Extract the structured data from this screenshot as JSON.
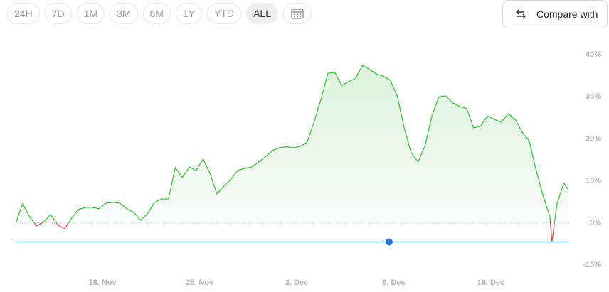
{
  "range_buttons": [
    "24H",
    "7D",
    "1M",
    "3M",
    "6M",
    "1Y",
    "YTD",
    "ALL"
  ],
  "selected_range": "ALL",
  "compare_button": "Compare with",
  "chart_data": {
    "type": "line",
    "x": [
      11.75,
      12.25,
      12.75,
      13.25,
      13.75,
      14.25,
      14.75,
      15.25,
      15.75,
      16.25,
      16.75,
      17.25,
      17.75,
      18.25,
      18.75,
      19.25,
      19.75,
      20.25,
      20.75,
      21.25,
      21.75,
      22.25,
      22.75,
      23.25,
      23.75,
      24.25,
      24.75,
      25.25,
      25.75,
      26.25,
      26.75,
      27.25,
      27.75,
      28.25,
      28.75,
      29.25,
      29.75,
      30.25,
      30.75,
      31.25,
      31.75,
      32.25,
      32.75,
      33.25,
      33.75,
      34.25,
      34.75,
      35.25,
      35.75,
      36.25,
      36.75,
      37.25,
      37.75,
      38.25,
      38.75,
      39.25,
      39.75,
      40.25,
      40.75,
      41.25,
      41.75,
      42.25,
      42.75,
      43.25,
      43.75,
      44.25,
      44.75,
      45.25,
      45.75,
      46.25,
      46.75,
      47.25,
      47.75,
      48.25,
      48.75,
      49.25,
      49.75,
      50.25,
      50.4,
      50.75,
      51.25,
      51.6
    ],
    "series": [
      {
        "color": "#3cb83c",
        "negative_color": "#e04848",
        "values": [
          0,
          4.6,
          1.4,
          -0.7,
          0.2,
          2.0,
          -0.3,
          -1.4,
          1.0,
          3.2,
          3.7,
          3.7,
          3.4,
          4.7,
          4.9,
          4.7,
          3.4,
          2.5,
          0.7,
          2.2,
          4.9,
          5.7,
          5.7,
          13.2,
          10.8,
          13.3,
          12.5,
          15.2,
          11.8,
          6.9,
          8.8,
          10.3,
          12.5,
          13.0,
          13.3,
          14.5,
          15.7,
          17.2,
          17.9,
          18.1,
          17.9,
          18.2,
          19.2,
          24.0,
          29.4,
          35.6,
          35.8,
          32.7,
          33.6,
          34.4,
          37.5,
          36.5,
          35.4,
          34.9,
          33.9,
          30.2,
          22.6,
          16.7,
          14.5,
          18.4,
          25.5,
          30.0,
          30.2,
          28.5,
          27.7,
          27.2,
          22.6,
          23.0,
          25.5,
          24.6,
          24.0,
          26.0,
          24.6,
          21.6,
          19.6,
          12.7,
          6.6,
          1.5,
          -4.5,
          4.4,
          9.5,
          7.8
        ]
      }
    ],
    "xlim": [
      11.74,
      51.64
    ],
    "xticks": [
      {
        "value": 18,
        "label": "18. Nov"
      },
      {
        "value": 25,
        "label": "25. Nov"
      },
      {
        "value": 32,
        "label": "2. Dec"
      },
      {
        "value": 39,
        "label": "9. Dec"
      },
      {
        "value": 46,
        "label": "16. Dec"
      }
    ],
    "ylim": [
      -10,
      40
    ],
    "yticks": [
      {
        "value": -10,
        "label": "-10%"
      },
      {
        "value": 0,
        "label": "0%"
      },
      {
        "value": 10,
        "label": "10%"
      },
      {
        "value": 20,
        "label": "20%"
      },
      {
        "value": 30,
        "label": "30%"
      },
      {
        "value": 40,
        "label": "40%"
      }
    ],
    "reference": {
      "value": -4.5,
      "x": 38.66,
      "color": "#3b6fd8"
    }
  }
}
